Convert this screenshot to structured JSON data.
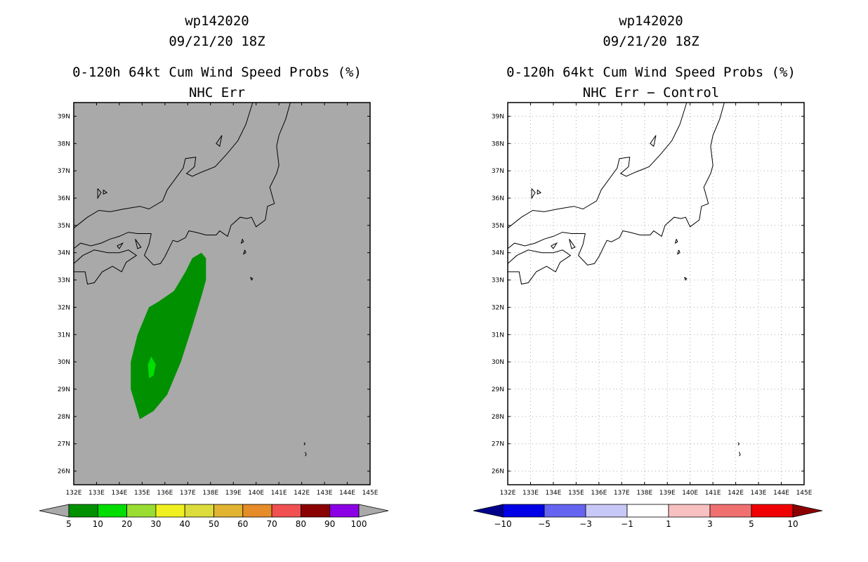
{
  "chart_data": [
    {
      "type": "heatmap",
      "storm_id": "wp142020",
      "datetime": "09/21/20 18Z",
      "title": "0-120h 64kt Cum Wind Speed Probs (%)",
      "subtitle": "NHC Err",
      "x_ticks": [
        "132E",
        "133E",
        "134E",
        "135E",
        "136E",
        "137E",
        "138E",
        "139E",
        "140E",
        "141E",
        "142E",
        "143E",
        "144E",
        "145E"
      ],
      "y_ticks": [
        "39N",
        "38N",
        "37N",
        "36N",
        "35N",
        "34N",
        "33N",
        "32N",
        "31N",
        "30N",
        "29N",
        "28N",
        "27N",
        "26N"
      ],
      "xlim": [
        132,
        145
      ],
      "ylim": [
        25.5,
        39.5
      ],
      "grid": false,
      "background_color": "#a9a9a9",
      "colorbar": {
        "labels": [
          "5",
          "10",
          "20",
          "30",
          "40",
          "50",
          "60",
          "70",
          "80",
          "90",
          "100"
        ],
        "colors": [
          "#009000",
          "#00dd00",
          "#99dd33",
          "#f0f020",
          "#dcdc3c",
          "#e1b432",
          "#e68c28",
          "#f05050",
          "#8b0000",
          "#8c00e6"
        ],
        "extend_color": "#a9a9a9"
      },
      "regions": [
        {
          "min_prob": 5,
          "color": "#009000",
          "points": [
            [
              137.6,
              34.0
            ],
            [
              137.8,
              33.8
            ],
            [
              137.8,
              33.0
            ],
            [
              137.6,
              32.4
            ],
            [
              137.2,
              31.3
            ],
            [
              136.7,
              30.0
            ],
            [
              136.1,
              28.8
            ],
            [
              135.5,
              28.2
            ],
            [
              134.9,
              27.9
            ],
            [
              134.5,
              29.0
            ],
            [
              134.5,
              30.0
            ],
            [
              134.8,
              31.0
            ],
            [
              135.3,
              32.0
            ],
            [
              135.7,
              32.2
            ],
            [
              136.4,
              32.6
            ],
            [
              136.9,
              33.3
            ],
            [
              137.2,
              33.8
            ]
          ]
        },
        {
          "min_prob": 10,
          "color": "#00dd00",
          "points": [
            [
              135.4,
              30.2
            ],
            [
              135.6,
              29.9
            ],
            [
              135.5,
              29.5
            ],
            [
              135.3,
              29.4
            ],
            [
              135.25,
              29.9
            ]
          ]
        }
      ]
    },
    {
      "type": "heatmap",
      "storm_id": "wp142020",
      "datetime": "09/21/20 18Z",
      "title": "0-120h 64kt Cum Wind Speed Probs (%)",
      "subtitle": "NHC Err − Control",
      "x_ticks": [
        "132E",
        "133E",
        "134E",
        "135E",
        "136E",
        "137E",
        "138E",
        "139E",
        "140E",
        "141E",
        "142E",
        "143E",
        "144E",
        "145E"
      ],
      "y_ticks": [
        "39N",
        "38N",
        "37N",
        "36N",
        "35N",
        "34N",
        "33N",
        "32N",
        "31N",
        "30N",
        "29N",
        "28N",
        "27N",
        "26N"
      ],
      "xlim": [
        132,
        145
      ],
      "ylim": [
        25.5,
        39.5
      ],
      "grid": true,
      "background_color": "#ffffff",
      "colorbar": {
        "labels": [
          "−10",
          "−5",
          "−3",
          "−1",
          "1",
          "3",
          "5",
          "10"
        ],
        "colors": [
          "#0000e6",
          "#6464f0",
          "#c8c8f8",
          "#ffffff",
          "#f8c0c0",
          "#f07070",
          "#f00000"
        ],
        "extend_low_color": "#00008b",
        "extend_high_color": "#8b0000"
      },
      "regions": []
    }
  ],
  "map": {
    "coastlines": [
      [
        [
          132,
          34.9
        ],
        [
          132.6,
          35.3
        ],
        [
          133.1,
          35.55
        ],
        [
          133.6,
          35.5
        ],
        [
          134.2,
          35.6
        ],
        [
          134.9,
          35.7
        ],
        [
          135.3,
          35.6
        ],
        [
          135.9,
          35.9
        ],
        [
          136.1,
          36.3
        ],
        [
          136.8,
          37.1
        ],
        [
          136.9,
          37.45
        ],
        [
          137.35,
          37.5
        ],
        [
          137.3,
          37.15
        ],
        [
          136.95,
          36.9
        ],
        [
          137.2,
          36.8
        ],
        [
          137.6,
          36.95
        ],
        [
          138.2,
          37.15
        ],
        [
          138.7,
          37.6
        ],
        [
          139.2,
          38.1
        ],
        [
          139.55,
          38.7
        ],
        [
          139.85,
          39.5
        ]
      ],
      [
        [
          141.5,
          39.5
        ],
        [
          141.3,
          38.9
        ],
        [
          141.0,
          38.3
        ],
        [
          140.9,
          37.9
        ],
        [
          141.0,
          37.2
        ],
        [
          140.9,
          36.9
        ],
        [
          140.6,
          36.4
        ],
        [
          140.8,
          35.8
        ],
        [
          140.5,
          35.7
        ],
        [
          140.4,
          35.2
        ],
        [
          140.0,
          34.95
        ],
        [
          139.8,
          35.3
        ],
        [
          139.6,
          35.25
        ],
        [
          139.3,
          35.3
        ],
        [
          138.9,
          35.0
        ],
        [
          138.75,
          34.6
        ],
        [
          138.4,
          34.8
        ],
        [
          138.25,
          34.65
        ],
        [
          137.8,
          34.65
        ],
        [
          137.35,
          34.75
        ],
        [
          137.05,
          34.8
        ],
        [
          136.9,
          34.55
        ],
        [
          136.55,
          34.4
        ],
        [
          136.35,
          34.45
        ],
        [
          136.0,
          33.85
        ],
        [
          135.8,
          33.6
        ],
        [
          135.5,
          33.55
        ],
        [
          135.1,
          33.9
        ],
        [
          135.3,
          34.3
        ],
        [
          135.4,
          34.7
        ]
      ],
      [
        [
          132,
          34.15
        ],
        [
          132.3,
          34.35
        ],
        [
          132.75,
          34.25
        ],
        [
          133.2,
          34.35
        ],
        [
          133.6,
          34.5
        ],
        [
          134.0,
          34.6
        ],
        [
          134.4,
          34.75
        ],
        [
          134.8,
          34.7
        ],
        [
          135.4,
          34.7
        ]
      ],
      [
        [
          132,
          33.6
        ],
        [
          132.4,
          33.9
        ],
        [
          132.9,
          34.1
        ],
        [
          133.5,
          34.0
        ],
        [
          134.0,
          34.0
        ],
        [
          134.4,
          34.1
        ],
        [
          134.75,
          33.9
        ],
        [
          134.3,
          33.65
        ],
        [
          134.1,
          33.3
        ],
        [
          133.7,
          33.5
        ],
        [
          133.25,
          33.3
        ],
        [
          132.9,
          32.9
        ],
        [
          132.6,
          32.85
        ],
        [
          132.5,
          33.3
        ],
        [
          132.1,
          33.3
        ],
        [
          132,
          33.3
        ]
      ],
      [
        [
          133.9,
          34.25
        ],
        [
          134.15,
          34.35
        ],
        [
          134.0,
          34.15
        ],
        [
          133.9,
          34.25
        ]
      ],
      [
        [
          134.7,
          34.5
        ],
        [
          134.95,
          34.2
        ],
        [
          134.8,
          34.15
        ],
        [
          134.7,
          34.5
        ]
      ],
      [
        [
          133.05,
          36.35
        ],
        [
          133.2,
          36.2
        ],
        [
          133.05,
          36.0
        ],
        [
          133.05,
          36.35
        ]
      ],
      [
        [
          133.3,
          36.3
        ],
        [
          133.45,
          36.2
        ],
        [
          133.3,
          36.15
        ],
        [
          133.3,
          36.3
        ]
      ],
      [
        [
          138.5,
          38.3
        ],
        [
          138.4,
          37.9
        ],
        [
          138.25,
          38.0
        ],
        [
          138.5,
          38.3
        ]
      ],
      [
        [
          139.4,
          34.5
        ],
        [
          139.45,
          34.4
        ],
        [
          139.35,
          34.35
        ],
        [
          139.4,
          34.5
        ]
      ],
      [
        [
          139.5,
          34.1
        ],
        [
          139.55,
          34.0
        ],
        [
          139.45,
          33.95
        ],
        [
          139.5,
          34.1
        ]
      ],
      [
        [
          139.75,
          33.1
        ],
        [
          139.85,
          33.05
        ],
        [
          139.8,
          33.0
        ],
        [
          139.75,
          33.1
        ]
      ],
      [
        [
          142.1,
          27.05
        ],
        [
          142.15,
          27.0
        ],
        [
          142.1,
          26.95
        ]
      ],
      [
        [
          142.15,
          26.7
        ],
        [
          142.2,
          26.6
        ],
        [
          142.15,
          26.55
        ]
      ]
    ]
  }
}
